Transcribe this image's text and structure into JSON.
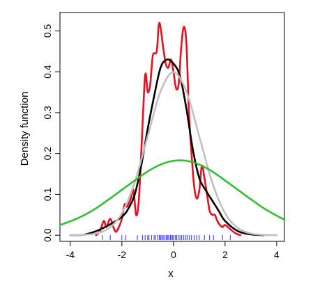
{
  "chart_data": {
    "type": "line",
    "title": "",
    "xlabel": "x",
    "ylabel": "Density function",
    "xlim": [
      -4.4,
      4.3
    ],
    "ylim": [
      -0.015,
      0.545
    ],
    "xticks": [
      "-4",
      "-2",
      "0",
      "2",
      "4"
    ],
    "xtick_values": [
      -4,
      -2,
      0,
      2,
      4
    ],
    "yticks": [
      "0.0",
      "0.1",
      "0.2",
      "0.3",
      "0.4",
      "0.5"
    ],
    "ytick_values": [
      0.0,
      0.1,
      0.2,
      0.3,
      0.4,
      0.5
    ],
    "grid": false,
    "legend": "none",
    "series": [
      {
        "color": "#e8101e",
        "x": [
          -3.0,
          -2.85,
          -2.7,
          -2.6,
          -2.45,
          -2.3,
          -2.2,
          -2.0,
          -1.9,
          -1.8,
          -1.65,
          -1.55,
          -1.45,
          -1.35,
          -1.25,
          -1.1,
          -1.0,
          -0.9,
          -0.8,
          -0.65,
          -0.55,
          -0.4,
          -0.3,
          -0.2,
          -0.1,
          0.0,
          0.1,
          0.2,
          0.3,
          0.4,
          0.5,
          0.6,
          0.7,
          0.8,
          0.9,
          1.0,
          1.1,
          1.2,
          1.3,
          1.4,
          1.5,
          1.6,
          1.7,
          1.8,
          1.9,
          2.0,
          2.2,
          2.4,
          2.6
        ],
        "values": [
          0.0,
          0.01,
          0.035,
          0.02,
          0.04,
          0.015,
          0.01,
          0.04,
          0.075,
          0.07,
          0.09,
          0.11,
          0.05,
          0.08,
          0.2,
          0.39,
          0.35,
          0.37,
          0.44,
          0.45,
          0.52,
          0.46,
          0.42,
          0.41,
          0.43,
          0.4,
          0.36,
          0.37,
          0.46,
          0.51,
          0.47,
          0.3,
          0.2,
          0.12,
          0.09,
          0.11,
          0.17,
          0.14,
          0.1,
          0.06,
          0.05,
          0.05,
          0.035,
          0.025,
          0.02,
          0.025,
          0.015,
          0.005,
          0.0
        ]
      },
      {
        "color": "#000000",
        "x": [
          -4.0,
          -3.5,
          -3.0,
          -2.5,
          -2.0,
          -1.75,
          -1.5,
          -1.25,
          -1.0,
          -0.75,
          -0.5,
          -0.25,
          0.0,
          0.25,
          0.5,
          0.75,
          1.0,
          1.25,
          1.5,
          1.75,
          2.0,
          2.5,
          3.0,
          3.5
        ],
        "values": [
          0.0,
          0.001,
          0.01,
          0.025,
          0.045,
          0.065,
          0.1,
          0.17,
          0.26,
          0.34,
          0.41,
          0.43,
          0.42,
          0.39,
          0.31,
          0.21,
          0.14,
          0.11,
          0.085,
          0.06,
          0.035,
          0.01,
          0.002,
          0.0
        ]
      },
      {
        "color": "#c0c0c0",
        "x": [
          -4.0,
          -3.5,
          -3.0,
          -2.5,
          -2.0,
          -1.5,
          -1.0,
          -0.5,
          0.0,
          0.5,
          1.0,
          1.5,
          2.0,
          2.5,
          3.0,
          3.5,
          4.0
        ],
        "values": [
          0.0001,
          0.0009,
          0.0044,
          0.0175,
          0.054,
          0.1295,
          0.242,
          0.352,
          0.399,
          0.352,
          0.242,
          0.1295,
          0.054,
          0.0175,
          0.0044,
          0.0009,
          0.0001
        ]
      },
      {
        "color": "#2ec12e",
        "x": [
          -4.4,
          -4.0,
          -3.5,
          -3.0,
          -2.5,
          -2.0,
          -1.5,
          -1.0,
          -0.5,
          0.0,
          0.5,
          1.0,
          1.5,
          2.0,
          2.5,
          3.0,
          3.5,
          4.0,
          4.3
        ],
        "values": [
          0.025,
          0.034,
          0.048,
          0.066,
          0.088,
          0.111,
          0.134,
          0.156,
          0.173,
          0.182,
          0.182,
          0.173,
          0.156,
          0.134,
          0.111,
          0.088,
          0.066,
          0.048,
          0.038
        ]
      }
    ],
    "rug": {
      "color": "#2d2df0",
      "x": [
        -2.75,
        -2.45,
        -2.0,
        -1.85,
        -1.4,
        -1.2,
        -1.1,
        -1.0,
        -0.95,
        -0.85,
        -0.75,
        -0.7,
        -0.62,
        -0.55,
        -0.5,
        -0.45,
        -0.4,
        -0.33,
        -0.28,
        -0.22,
        -0.18,
        -0.12,
        -0.08,
        -0.03,
        0.02,
        0.08,
        0.12,
        0.18,
        0.25,
        0.32,
        0.4,
        0.48,
        0.55,
        0.62,
        0.7,
        0.8,
        0.9,
        1.0,
        1.2,
        1.4,
        1.55,
        1.9,
        2.2
      ]
    }
  }
}
